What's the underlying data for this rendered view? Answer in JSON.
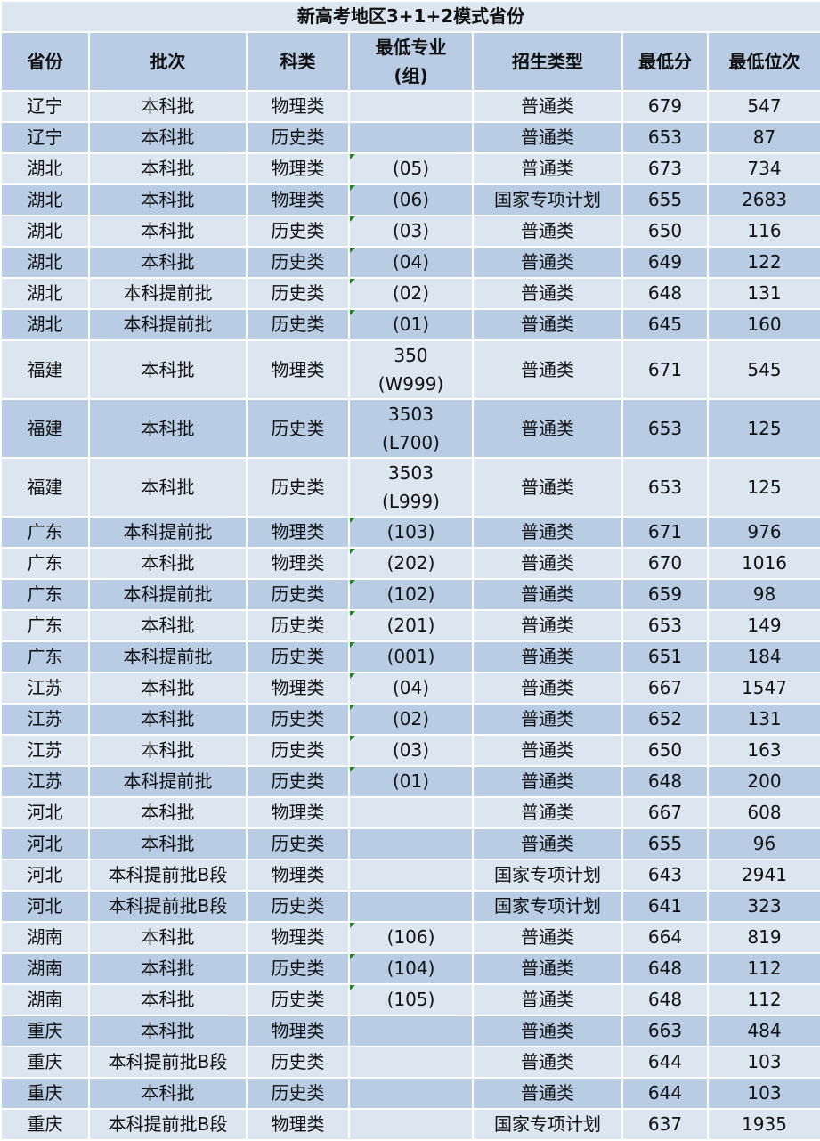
{
  "title": "新高考地区3+1+2模式省份",
  "headers": [
    "省份",
    "批次",
    "科类",
    "最低专业\n(组)",
    "招生类型",
    "最低分",
    "最低位次"
  ],
  "header_group_lines": [
    "最低专业",
    "(组)"
  ],
  "rows": [
    [
      "辽宁",
      "本科批",
      "物理类",
      "",
      "普通类",
      "679",
      "547"
    ],
    [
      "辽宁",
      "本科批",
      "历史类",
      "",
      "普通类",
      "653",
      "87"
    ],
    [
      "湖北",
      "本科批",
      "物理类",
      "(05)",
      "普通类",
      "673",
      "734"
    ],
    [
      "湖北",
      "本科批",
      "物理类",
      "(06)",
      "国家专项计划",
      "655",
      "2683"
    ],
    [
      "湖北",
      "本科批",
      "历史类",
      "(03)",
      "普通类",
      "650",
      "116"
    ],
    [
      "湖北",
      "本科批",
      "历史类",
      "(04)",
      "普通类",
      "649",
      "122"
    ],
    [
      "湖北",
      "本科提前批",
      "历史类",
      "(02)",
      "普通类",
      "648",
      "131"
    ],
    [
      "湖北",
      "本科提前批",
      "历史类",
      "(01)",
      "普通类",
      "645",
      "160"
    ],
    [
      "福建",
      "本科批",
      "物理类",
      "350\n(W999)",
      "普通类",
      "671",
      "545"
    ],
    [
      "福建",
      "本科批",
      "历史类",
      "3503\n(L700)",
      "普通类",
      "653",
      "125"
    ],
    [
      "福建",
      "本科批",
      "历史类",
      "3503\n(L999)",
      "普通类",
      "653",
      "125"
    ],
    [
      "广东",
      "本科提前批",
      "物理类",
      "(103)",
      "普通类",
      "671",
      "976"
    ],
    [
      "广东",
      "本科批",
      "物理类",
      "(202)",
      "普通类",
      "670",
      "1016"
    ],
    [
      "广东",
      "本科提前批",
      "历史类",
      "(102)",
      "普通类",
      "659",
      "98"
    ],
    [
      "广东",
      "本科批",
      "历史类",
      "(201)",
      "普通类",
      "653",
      "149"
    ],
    [
      "广东",
      "本科提前批",
      "历史类",
      "(001)",
      "普通类",
      "651",
      "184"
    ],
    [
      "江苏",
      "本科批",
      "物理类",
      "(04)",
      "普通类",
      "667",
      "1547"
    ],
    [
      "江苏",
      "本科批",
      "历史类",
      "(02)",
      "普通类",
      "652",
      "131"
    ],
    [
      "江苏",
      "本科批",
      "历史类",
      "(03)",
      "普通类",
      "650",
      "163"
    ],
    [
      "江苏",
      "本科提前批",
      "历史类",
      "(01)",
      "普通类",
      "648",
      "200"
    ],
    [
      "河北",
      "本科批",
      "物理类",
      "",
      "普通类",
      "667",
      "608"
    ],
    [
      "河北",
      "本科批",
      "历史类",
      "",
      "普通类",
      "655",
      "96"
    ],
    [
      "河北",
      "本科提前批B段",
      "物理类",
      "",
      "国家专项计划",
      "643",
      "2941"
    ],
    [
      "河北",
      "本科提前批B段",
      "历史类",
      "",
      "国家专项计划",
      "641",
      "323"
    ],
    [
      "湖南",
      "本科批",
      "物理类",
      "(106)",
      "普通类",
      "664",
      "819"
    ],
    [
      "湖南",
      "本科批",
      "历史类",
      "(104)",
      "普通类",
      "648",
      "112"
    ],
    [
      "湖南",
      "本科批",
      "历史类",
      "(105)",
      "普通类",
      "648",
      "112"
    ],
    [
      "重庆",
      "本科批",
      "物理类",
      "",
      "普通类",
      "663",
      "484"
    ],
    [
      "重庆",
      "本科提前批B段",
      "历史类",
      "",
      "普通类",
      "644",
      "103"
    ],
    [
      "重庆",
      "本科批",
      "历史类",
      "",
      "普通类",
      "644",
      "103"
    ],
    [
      "重庆",
      "本科提前批B段",
      "物理类",
      "",
      "国家专项计划",
      "637",
      "1935"
    ]
  ],
  "colors": {
    "light_row": "#dce6f1",
    "dark_row": "#b8cce4",
    "header": "#b8cce4",
    "text_marker": "#1a8a1a"
  }
}
